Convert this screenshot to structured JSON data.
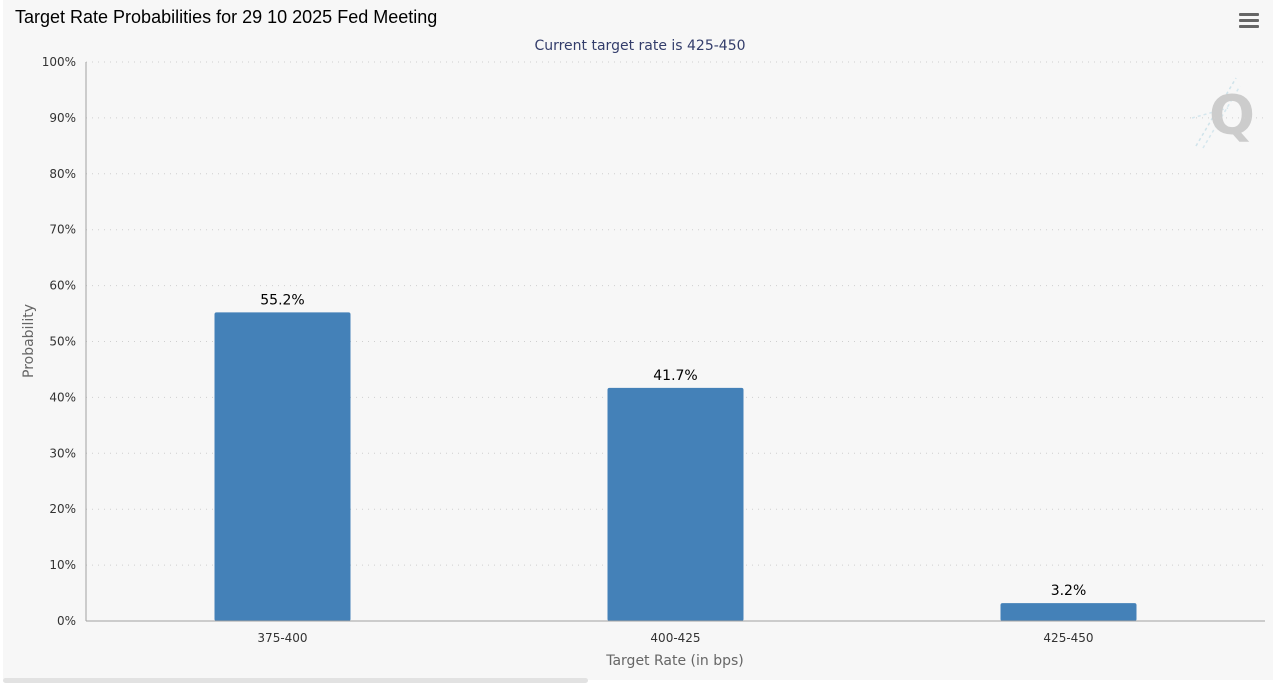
{
  "header": {
    "title": "Target Rate Probabilities for 29 10 2025 Fed Meeting"
  },
  "menu": {
    "icon": "hamburger-menu-icon"
  },
  "watermark": {
    "icon": "q-logo-watermark-icon",
    "text": "Q"
  },
  "colors": {
    "bar": "#4481b8",
    "subtitle": "#333d6b",
    "grid": "#cfcfcf",
    "axis": "#a0a0a0",
    "background": "#f7f7f7"
  },
  "chart_data": {
    "type": "bar",
    "title": "Target Rate Probabilities for 29 10 2025 Fed Meeting",
    "subtitle": "Current target rate is 425-450",
    "xlabel": "Target Rate (in bps)",
    "ylabel": "Probability",
    "categories": [
      "375-400",
      "400-425",
      "425-450"
    ],
    "values": [
      55.2,
      41.7,
      3.2
    ],
    "data_labels": [
      "55.2%",
      "41.7%",
      "3.2%"
    ],
    "ylim": [
      0,
      100
    ],
    "yticks": [
      "0%",
      "10%",
      "20%",
      "30%",
      "40%",
      "50%",
      "60%",
      "70%",
      "80%",
      "90%",
      "100%"
    ],
    "grid": true,
    "legend": "none"
  }
}
